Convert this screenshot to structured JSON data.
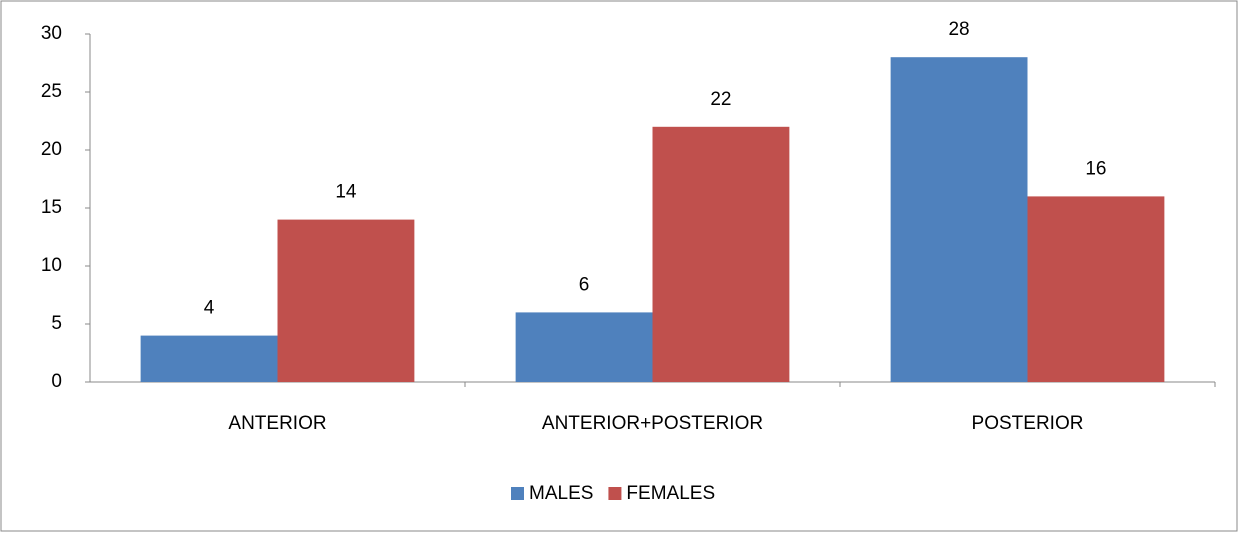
{
  "chart_data": {
    "type": "bar",
    "categories": [
      "ANTERIOR",
      "ANTERIOR+POSTERIOR",
      "POSTERIOR"
    ],
    "series": [
      {
        "name": "MALES",
        "color": "#4f81bd",
        "values": [
          4,
          6,
          28
        ]
      },
      {
        "name": "FEMALES",
        "color": "#c0504d",
        "values": [
          14,
          22,
          16
        ]
      }
    ],
    "ylim": [
      0,
      30
    ],
    "yticks": [
      0,
      5,
      10,
      15,
      20,
      25,
      30
    ],
    "grid": false,
    "legend": "bottom"
  }
}
